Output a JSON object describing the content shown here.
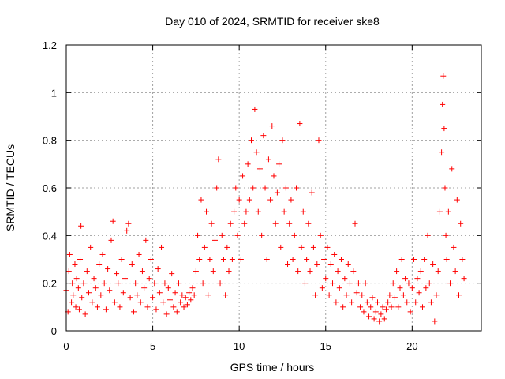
{
  "chart_data": {
    "type": "scatter",
    "title": "Day 010 of 2024, SRMTID for receiver ske8",
    "xlabel": "GPS time / hours",
    "ylabel": "SRMTID / TECUs",
    "xlim": [
      0,
      24
    ],
    "ylim": [
      0,
      1.2
    ],
    "x_ticks": [
      0,
      5,
      10,
      15,
      20
    ],
    "x_tick_labels": [
      "0",
      "5",
      "10",
      "15",
      "20"
    ],
    "y_ticks": [
      0,
      0.2,
      0.4,
      0.6,
      0.8,
      1.0,
      1.2
    ],
    "y_tick_labels": [
      "0",
      "0.2",
      "0.4",
      "0.6",
      "0.8",
      "1",
      "1.2"
    ],
    "grid": true,
    "marker": "+",
    "color": "#ff0000",
    "series": [
      {
        "name": "SRMTID",
        "points": [
          [
            0.0,
            0.17
          ],
          [
            0.1,
            0.08
          ],
          [
            0.15,
            0.25
          ],
          [
            0.2,
            0.32
          ],
          [
            0.3,
            0.12
          ],
          [
            0.35,
            0.2
          ],
          [
            0.4,
            0.15
          ],
          [
            0.5,
            0.28
          ],
          [
            0.55,
            0.1
          ],
          [
            0.6,
            0.22
          ],
          [
            0.7,
            0.18
          ],
          [
            0.75,
            0.09
          ],
          [
            0.8,
            0.3
          ],
          [
            0.85,
            0.44
          ],
          [
            0.9,
            0.14
          ],
          [
            1.0,
            0.2
          ],
          [
            1.1,
            0.07
          ],
          [
            1.2,
            0.25
          ],
          [
            1.3,
            0.16
          ],
          [
            1.4,
            0.35
          ],
          [
            1.5,
            0.12
          ],
          [
            1.6,
            0.22
          ],
          [
            1.7,
            0.18
          ],
          [
            1.8,
            0.1
          ],
          [
            1.9,
            0.28
          ],
          [
            2.0,
            0.15
          ],
          [
            2.1,
            0.32
          ],
          [
            2.2,
            0.2
          ],
          [
            2.3,
            0.09
          ],
          [
            2.4,
            0.26
          ],
          [
            2.5,
            0.17
          ],
          [
            2.6,
            0.38
          ],
          [
            2.7,
            0.46
          ],
          [
            2.8,
            0.12
          ],
          [
            2.9,
            0.24
          ],
          [
            3.0,
            0.2
          ],
          [
            3.1,
            0.1
          ],
          [
            3.2,
            0.3
          ],
          [
            3.3,
            0.16
          ],
          [
            3.4,
            0.22
          ],
          [
            3.5,
            0.42
          ],
          [
            3.6,
            0.45
          ],
          [
            3.7,
            0.14
          ],
          [
            3.8,
            0.28
          ],
          [
            3.9,
            0.08
          ],
          [
            4.0,
            0.2
          ],
          [
            4.1,
            0.15
          ],
          [
            4.2,
            0.32
          ],
          [
            4.3,
            0.12
          ],
          [
            4.4,
            0.25
          ],
          [
            4.5,
            0.18
          ],
          [
            4.6,
            0.38
          ],
          [
            4.7,
            0.1
          ],
          [
            4.8,
            0.22
          ],
          [
            4.9,
            0.3
          ],
          [
            5.0,
            0.14
          ],
          [
            5.1,
            0.2
          ],
          [
            5.2,
            0.09
          ],
          [
            5.3,
            0.26
          ],
          [
            5.4,
            0.16
          ],
          [
            5.5,
            0.35
          ],
          [
            5.6,
            0.12
          ],
          [
            5.7,
            0.2
          ],
          [
            5.8,
            0.07
          ],
          [
            5.9,
            0.18
          ],
          [
            6.0,
            0.13
          ],
          [
            6.1,
            0.24
          ],
          [
            6.2,
            0.1
          ],
          [
            6.3,
            0.16
          ],
          [
            6.4,
            0.08
          ],
          [
            6.5,
            0.2
          ],
          [
            6.6,
            0.12
          ],
          [
            6.7,
            0.15
          ],
          [
            6.8,
            0.1
          ],
          [
            6.9,
            0.14
          ],
          [
            7.0,
            0.11
          ],
          [
            7.1,
            0.16
          ],
          [
            7.2,
            0.13
          ],
          [
            7.3,
            0.18
          ],
          [
            7.4,
            0.15
          ],
          [
            7.5,
            0.25
          ],
          [
            7.6,
            0.4
          ],
          [
            7.7,
            0.3
          ],
          [
            7.8,
            0.55
          ],
          [
            7.9,
            0.2
          ],
          [
            8.0,
            0.35
          ],
          [
            8.1,
            0.5
          ],
          [
            8.2,
            0.15
          ],
          [
            8.3,
            0.3
          ],
          [
            8.4,
            0.45
          ],
          [
            8.5,
            0.25
          ],
          [
            8.6,
            0.38
          ],
          [
            8.7,
            0.6
          ],
          [
            8.8,
            0.72
          ],
          [
            8.9,
            0.2
          ],
          [
            9.0,
            0.4
          ],
          [
            9.1,
            0.3
          ],
          [
            9.2,
            0.15
          ],
          [
            9.3,
            0.35
          ],
          [
            9.4,
            0.25
          ],
          [
            9.5,
            0.45
          ],
          [
            9.6,
            0.3
          ],
          [
            9.7,
            0.5
          ],
          [
            9.8,
            0.6
          ],
          [
            9.9,
            0.4
          ],
          [
            10.0,
            0.55
          ],
          [
            10.1,
            0.3
          ],
          [
            10.2,
            0.65
          ],
          [
            10.3,
            0.45
          ],
          [
            10.4,
            0.5
          ],
          [
            10.5,
            0.7
          ],
          [
            10.6,
            0.55
          ],
          [
            10.7,
            0.8
          ],
          [
            10.8,
            0.6
          ],
          [
            10.9,
            0.93
          ],
          [
            11.0,
            0.75
          ],
          [
            11.1,
            0.5
          ],
          [
            11.2,
            0.68
          ],
          [
            11.3,
            0.4
          ],
          [
            11.4,
            0.82
          ],
          [
            11.5,
            0.6
          ],
          [
            11.6,
            0.3
          ],
          [
            11.7,
            0.72
          ],
          [
            11.8,
            0.55
          ],
          [
            11.9,
            0.86
          ],
          [
            12.0,
            0.65
          ],
          [
            12.1,
            0.45
          ],
          [
            12.2,
            0.58
          ],
          [
            12.3,
            0.7
          ],
          [
            12.4,
            0.35
          ],
          [
            12.5,
            0.8
          ],
          [
            12.6,
            0.5
          ],
          [
            12.7,
            0.6
          ],
          [
            12.8,
            0.28
          ],
          [
            12.9,
            0.45
          ],
          [
            13.0,
            0.55
          ],
          [
            13.1,
            0.3
          ],
          [
            13.2,
            0.4
          ],
          [
            13.3,
            0.6
          ],
          [
            13.4,
            0.25
          ],
          [
            13.5,
            0.87
          ],
          [
            13.6,
            0.35
          ],
          [
            13.7,
            0.5
          ],
          [
            13.8,
            0.2
          ],
          [
            13.9,
            0.3
          ],
          [
            14.0,
            0.45
          ],
          [
            14.1,
            0.25
          ],
          [
            14.2,
            0.58
          ],
          [
            14.3,
            0.35
          ],
          [
            14.4,
            0.15
          ],
          [
            14.5,
            0.28
          ],
          [
            14.6,
            0.8
          ],
          [
            14.7,
            0.4
          ],
          [
            14.8,
            0.18
          ],
          [
            14.9,
            0.3
          ],
          [
            15.0,
            0.22
          ],
          [
            15.1,
            0.35
          ],
          [
            15.2,
            0.15
          ],
          [
            15.3,
            0.28
          ],
          [
            15.4,
            0.2
          ],
          [
            15.5,
            0.32
          ],
          [
            15.6,
            0.12
          ],
          [
            15.7,
            0.25
          ],
          [
            15.8,
            0.18
          ],
          [
            15.9,
            0.3
          ],
          [
            16.0,
            0.1
          ],
          [
            16.1,
            0.22
          ],
          [
            16.2,
            0.15
          ],
          [
            16.3,
            0.28
          ],
          [
            16.4,
            0.2
          ],
          [
            16.5,
            0.12
          ],
          [
            16.6,
            0.25
          ],
          [
            16.7,
            0.45
          ],
          [
            16.8,
            0.16
          ],
          [
            16.9,
            0.2
          ],
          [
            17.0,
            0.1
          ],
          [
            17.1,
            0.15
          ],
          [
            17.2,
            0.08
          ],
          [
            17.3,
            0.2
          ],
          [
            17.4,
            0.12
          ],
          [
            17.5,
            0.06
          ],
          [
            17.6,
            0.1
          ],
          [
            17.7,
            0.14
          ],
          [
            17.8,
            0.05
          ],
          [
            17.9,
            0.08
          ],
          [
            18.0,
            0.12
          ],
          [
            18.1,
            0.04
          ],
          [
            18.2,
            0.07
          ],
          [
            18.3,
            0.1
          ],
          [
            18.4,
            0.05
          ],
          [
            18.5,
            0.09
          ],
          [
            18.6,
            0.12
          ],
          [
            18.7,
            0.15
          ],
          [
            18.8,
            0.1
          ],
          [
            18.9,
            0.2
          ],
          [
            19.0,
            0.14
          ],
          [
            19.1,
            0.25
          ],
          [
            19.2,
            0.1
          ],
          [
            19.3,
            0.18
          ],
          [
            19.4,
            0.3
          ],
          [
            19.5,
            0.15
          ],
          [
            19.6,
            0.22
          ],
          [
            19.7,
            0.12
          ],
          [
            19.8,
            0.2
          ],
          [
            19.9,
            0.08
          ],
          [
            20.0,
            0.18
          ],
          [
            20.1,
            0.3
          ],
          [
            20.2,
            0.12
          ],
          [
            20.3,
            0.22
          ],
          [
            20.4,
            0.16
          ],
          [
            20.5,
            0.25
          ],
          [
            20.6,
            0.1
          ],
          [
            20.7,
            0.3
          ],
          [
            20.8,
            0.18
          ],
          [
            20.9,
            0.4
          ],
          [
            21.0,
            0.2
          ],
          [
            21.1,
            0.12
          ],
          [
            21.2,
            0.28
          ],
          [
            21.3,
            0.04
          ],
          [
            21.4,
            0.15
          ],
          [
            21.5,
            0.25
          ],
          [
            21.6,
            0.5
          ],
          [
            21.7,
            0.75
          ],
          [
            21.75,
            0.95
          ],
          [
            21.8,
            1.07
          ],
          [
            21.85,
            0.85
          ],
          [
            21.9,
            0.6
          ],
          [
            21.95,
            0.4
          ],
          [
            22.0,
            0.3
          ],
          [
            22.1,
            0.5
          ],
          [
            22.2,
            0.2
          ],
          [
            22.3,
            0.68
          ],
          [
            22.4,
            0.35
          ],
          [
            22.5,
            0.25
          ],
          [
            22.6,
            0.55
          ],
          [
            22.7,
            0.15
          ],
          [
            22.8,
            0.45
          ],
          [
            22.9,
            0.3
          ],
          [
            23.0,
            0.22
          ]
        ]
      }
    ]
  }
}
